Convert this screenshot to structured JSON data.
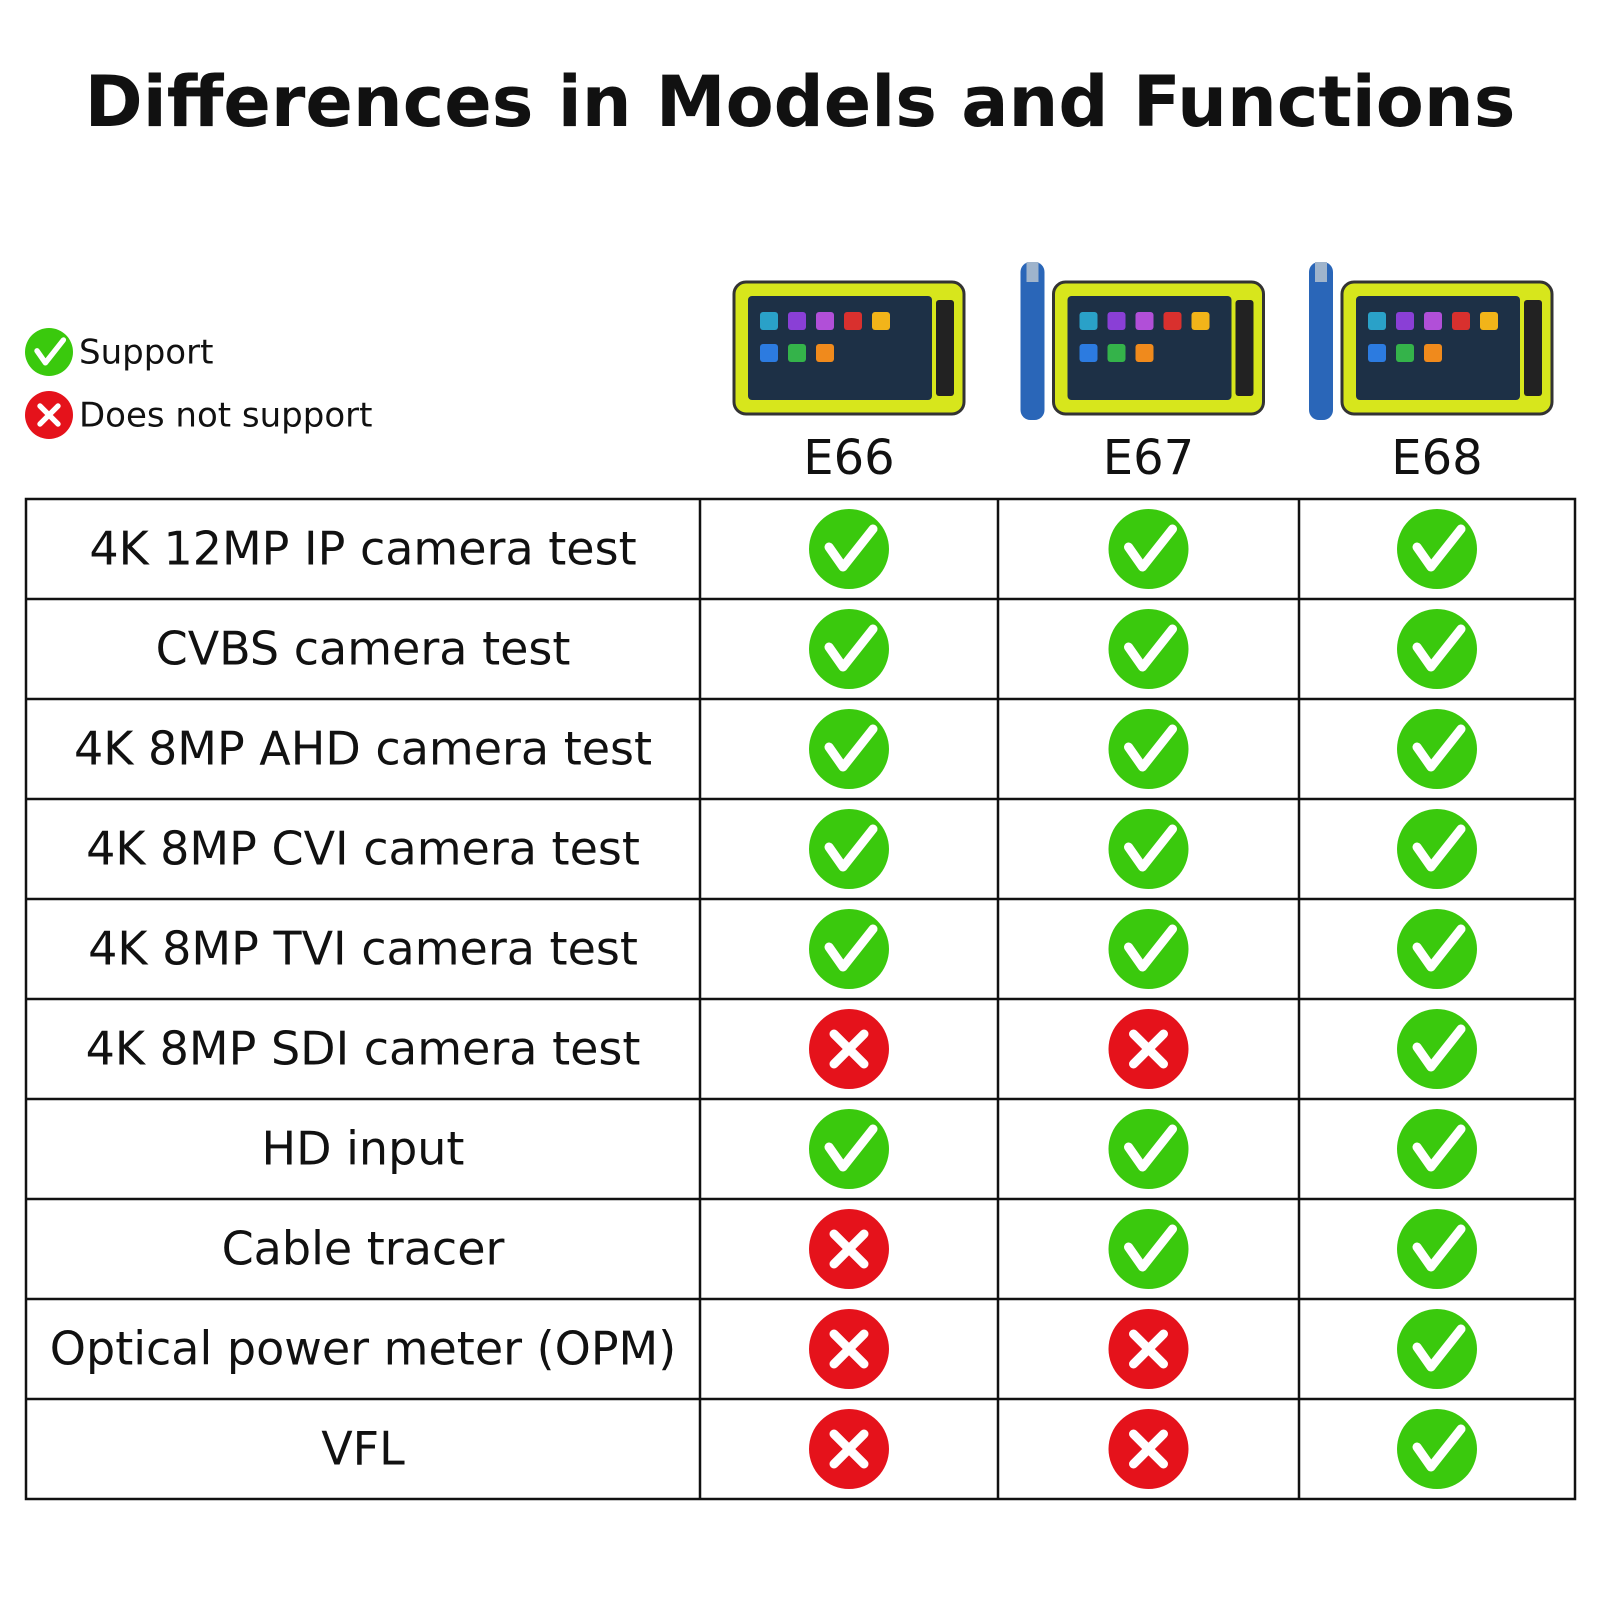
{
  "title": "Differences in Models and Functions",
  "legend": {
    "support": "Support",
    "not_support": "Does not support"
  },
  "table": {
    "models": [
      "E66",
      "E67",
      "E68"
    ],
    "rows": [
      {
        "feature": "4K 12MP IP camera test",
        "support": [
          true,
          true,
          true
        ]
      },
      {
        "feature": "CVBS camera test",
        "support": [
          true,
          true,
          true
        ]
      },
      {
        "feature": "4K 8MP AHD camera test",
        "support": [
          true,
          true,
          true
        ]
      },
      {
        "feature": "4K 8MP CVI camera test",
        "support": [
          true,
          true,
          true
        ]
      },
      {
        "feature": "4K 8MP TVI camera test",
        "support": [
          true,
          true,
          true
        ]
      },
      {
        "feature": "4K 8MP SDI camera test",
        "support": [
          false,
          false,
          true
        ]
      },
      {
        "feature": "HD input",
        "support": [
          true,
          true,
          true
        ]
      },
      {
        "feature": "Cable tracer",
        "support": [
          false,
          true,
          true
        ]
      },
      {
        "feature": "Optical power meter (OPM)",
        "support": [
          false,
          false,
          true
        ]
      },
      {
        "feature": "VFL",
        "support": [
          false,
          false,
          true
        ]
      }
    ]
  }
}
